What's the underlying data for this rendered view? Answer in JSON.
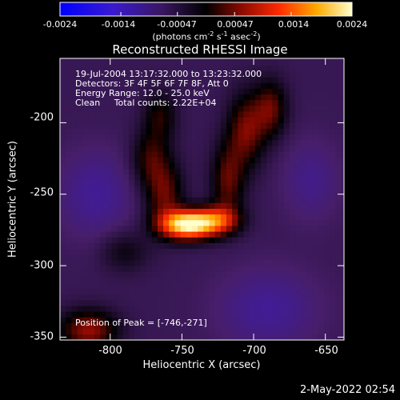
{
  "chart_data": {
    "type": "heatmap",
    "title": "Reconstructed RHESSI Image",
    "xlabel": "Heliocentric X (arcsec)",
    "ylabel": "Heliocentric Y (arcsec)",
    "xlim": [
      -835,
      -637
    ],
    "ylim": [
      -352,
      -155
    ],
    "xticks": [
      -800,
      -750,
      -700,
      -650
    ],
    "yticks": [
      -200,
      -250,
      -300,
      -350
    ],
    "colorbar": {
      "min": -0.0024,
      "max": 0.0024,
      "ticks": [
        "-0.0024",
        "-0.0014",
        "-0.00047",
        "0.00047",
        "0.0014",
        "0.0024"
      ],
      "tick_values": [
        -0.0024,
        -0.0014,
        -0.00047,
        0.00047,
        0.0014,
        0.0024
      ]
    },
    "annotations": [
      "19-Jul-2004 13:17:32.000 to 13:23:32.000",
      "Detectors: 3F 4F 5F 6F 7F 8F, Att 0",
      "Energy Range: 12.0 - 25.0 keV",
      "Clean     Total counts: 2.22E+04"
    ],
    "peak_label": "Position of Peak = [-746,-271]",
    "peak": [
      -746,
      -271
    ]
  },
  "colorbar_unit": {
    "pre": "(photons cm",
    "e1": "-2",
    "mid1": " s",
    "e2": "-1",
    "mid2": " asec",
    "e3": "-2",
    "post": ")"
  },
  "footer_date": "2-May-2022 02:54"
}
